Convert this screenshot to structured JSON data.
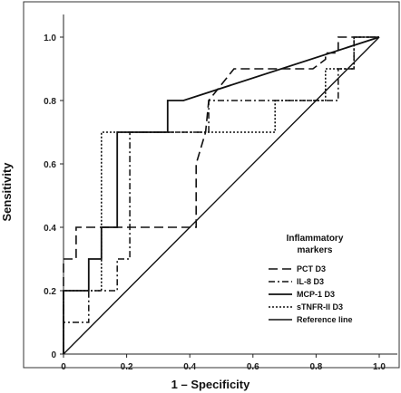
{
  "chart_data": {
    "type": "line",
    "xlabel": "1 – Specificity",
    "ylabel": "Sensitivity",
    "xlim": [
      0,
      1
    ],
    "ylim": [
      0,
      1
    ],
    "x_ticks": [
      "0",
      "0.2",
      "0.4",
      "0.6",
      "0.8",
      "1.0"
    ],
    "x_tick_values": [
      0,
      0.2,
      0.4,
      0.6,
      0.8,
      1.0
    ],
    "y_ticks": [
      "0",
      "0.2",
      "0.4",
      "0.6",
      "0.8",
      "1.0"
    ],
    "y_tick_values": [
      0,
      0.2,
      0.4,
      0.6,
      0.8,
      1.0
    ],
    "grid": false,
    "legend": {
      "title_line1": "Inflammatory",
      "title_line2": "markers",
      "placement": "bottom-right"
    },
    "series": [
      {
        "name": "PCT D3",
        "dash": "long-dash",
        "points": [
          [
            0,
            0
          ],
          [
            0,
            0.3
          ],
          [
            0.04,
            0.3
          ],
          [
            0.04,
            0.4
          ],
          [
            0.42,
            0.4
          ],
          [
            0.42,
            0.6
          ],
          [
            0.45,
            0.7
          ],
          [
            0.46,
            0.8
          ],
          [
            0.54,
            0.9
          ],
          [
            0.79,
            0.9
          ],
          [
            0.83,
            0.93
          ],
          [
            0.83,
            0.95
          ],
          [
            0.87,
            0.95
          ],
          [
            0.87,
            1.0
          ],
          [
            1.0,
            1.0
          ]
        ]
      },
      {
        "name": "IL-8 D3",
        "dash": "dash-dot",
        "points": [
          [
            0,
            0
          ],
          [
            0,
            0.1
          ],
          [
            0.08,
            0.1
          ],
          [
            0.08,
            0.2
          ],
          [
            0.17,
            0.2
          ],
          [
            0.17,
            0.3
          ],
          [
            0.21,
            0.3
          ],
          [
            0.21,
            0.7
          ],
          [
            0.46,
            0.7
          ],
          [
            0.46,
            0.8
          ],
          [
            0.87,
            0.8
          ],
          [
            0.87,
            0.9
          ],
          [
            0.92,
            0.9
          ],
          [
            0.92,
            1.0
          ],
          [
            1.0,
            1.0
          ]
        ]
      },
      {
        "name": "MCP-1 D3",
        "dash": "solid",
        "points": [
          [
            0,
            0
          ],
          [
            0,
            0.2
          ],
          [
            0.08,
            0.2
          ],
          [
            0.08,
            0.3
          ],
          [
            0.12,
            0.3
          ],
          [
            0.12,
            0.4
          ],
          [
            0.17,
            0.4
          ],
          [
            0.17,
            0.7
          ],
          [
            0.33,
            0.7
          ],
          [
            0.33,
            0.8
          ],
          [
            0.38,
            0.8
          ],
          [
            1.0,
            1.0
          ]
        ]
      },
      {
        "name": "sTNFR-II D3",
        "dash": "dotted",
        "points": [
          [
            0,
            0
          ],
          [
            0,
            0.2
          ],
          [
            0.12,
            0.2
          ],
          [
            0.12,
            0.7
          ],
          [
            0.67,
            0.7
          ],
          [
            0.67,
            0.8
          ],
          [
            0.83,
            0.8
          ],
          [
            0.83,
            0.9
          ],
          [
            0.92,
            0.9
          ],
          [
            0.92,
            1.0
          ],
          [
            1.0,
            1.0
          ]
        ]
      },
      {
        "name": "Reference line",
        "dash": "solid-thin",
        "points": [
          [
            0,
            0
          ],
          [
            1,
            1
          ]
        ]
      }
    ]
  }
}
